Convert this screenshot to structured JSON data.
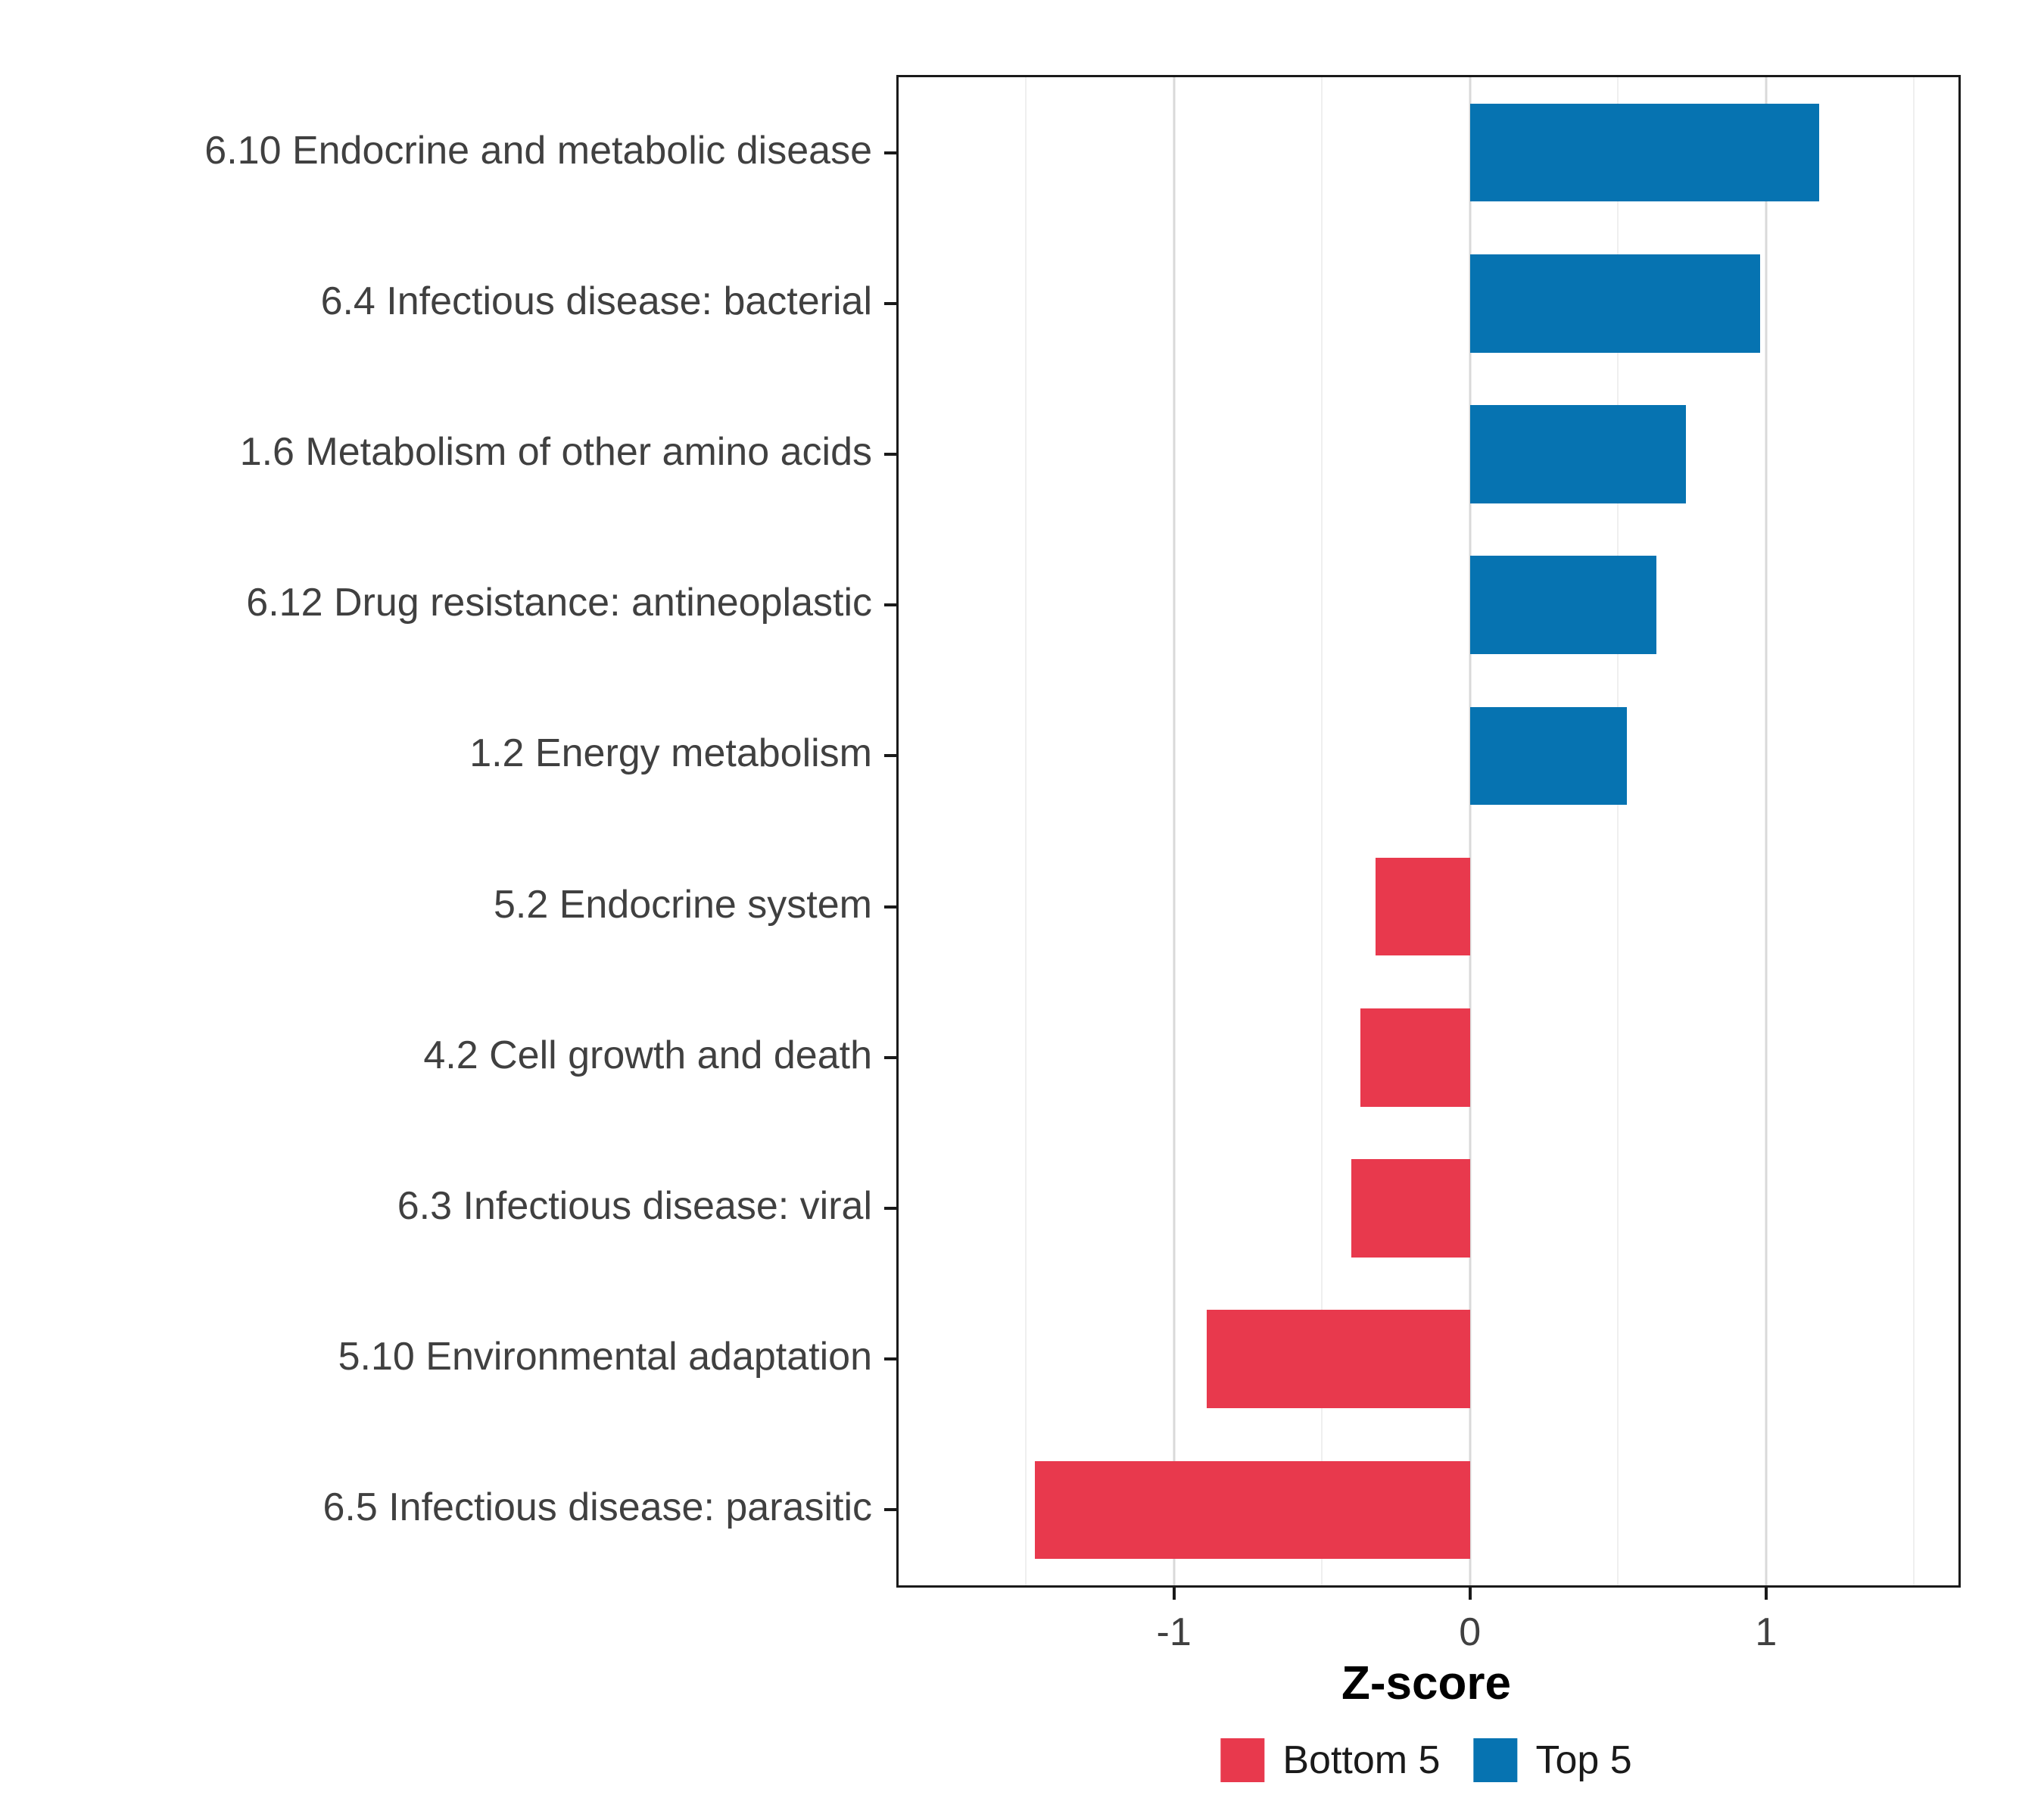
{
  "figure": {
    "background": "#ffffff"
  },
  "colors": {
    "top": "#0673B1",
    "bottom": "#E8394D",
    "grid_major": "#d9d9d9",
    "grid_minor": "#efefef",
    "axis_text": "#404040",
    "panel_border": "#1a1a1a"
  },
  "chart_data": {
    "type": "bar",
    "orientation": "horizontal",
    "title": "",
    "xlabel": "Z-score",
    "ylabel": "",
    "xlim": [
      -1.93,
      1.65
    ],
    "x_ticks": [
      -1,
      0,
      1
    ],
    "x_tick_labels": [
      "-1",
      "0",
      "1"
    ],
    "x_minor_gridlines": [
      -1.5,
      -0.5,
      0.5,
      1.5
    ],
    "grid": true,
    "bar_band_fraction": 0.65,
    "bars": [
      {
        "label": "6.10 Endocrine and metabolic disease",
        "value": 1.18,
        "group": "Top 5"
      },
      {
        "label": "6.4 Infectious disease: bacterial",
        "value": 0.98,
        "group": "Top 5"
      },
      {
        "label": "1.6 Metabolism of other amino acids",
        "value": 0.73,
        "group": "Top 5"
      },
      {
        "label": "6.12 Drug resistance: antineoplastic",
        "value": 0.63,
        "group": "Top 5"
      },
      {
        "label": "1.2 Energy metabolism",
        "value": 0.53,
        "group": "Top 5"
      },
      {
        "label": "5.2 Endocrine system",
        "value": -0.32,
        "group": "Bottom 5"
      },
      {
        "label": "4.2 Cell growth and death",
        "value": -0.37,
        "group": "Bottom 5"
      },
      {
        "label": "6.3 Infectious disease: viral",
        "value": -0.4,
        "group": "Bottom 5"
      },
      {
        "label": "5.10 Environmental adaptation",
        "value": -0.89,
        "group": "Bottom 5"
      },
      {
        "label": "6.5 Infectious disease: parasitic",
        "value": -1.47,
        "group": "Bottom 5"
      }
    ],
    "legend": [
      {
        "label": "Bottom 5",
        "group": "Bottom 5"
      },
      {
        "label": "Top 5",
        "group": "Top 5"
      }
    ],
    "legend_position": "bottom"
  }
}
